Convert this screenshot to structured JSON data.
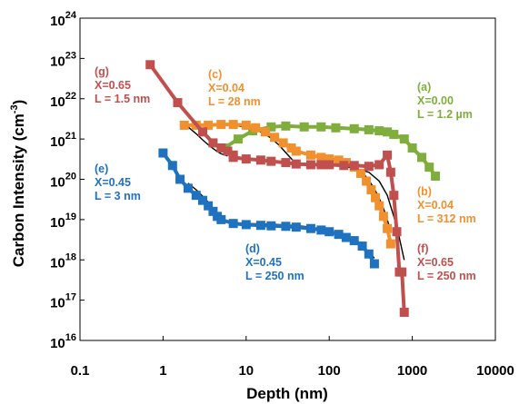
{
  "chart_data": {
    "type": "scatter",
    "title": "",
    "xlabel": "Depth (nm)",
    "ylabel_main": "Carbon Intensity (cm",
    "ylabel_sup": "-3",
    "ylabel_end": ")",
    "x_scale": "log",
    "y_scale": "log",
    "xlim": [
      0.1,
      10000
    ],
    "ylim": [
      1e+16,
      1e+24
    ],
    "grid": false,
    "legend": "none",
    "x_tick_labels": [
      "0.1",
      "1",
      "10",
      "100",
      "1000",
      "10000"
    ],
    "x_tick_values": [
      0.1,
      1,
      10,
      100,
      1000,
      10000
    ],
    "y_tick_base": "10",
    "y_tick_exponents": [
      "16",
      "17",
      "18",
      "19",
      "20",
      "21",
      "22",
      "23",
      "24"
    ],
    "series": [
      {
        "id": "a",
        "color": "#7fae3c",
        "label": [
          "(a)",
          "X=0.00",
          "L = 1.2 µm"
        ],
        "x": [
          5.5,
          8,
          12,
          20,
          30,
          50,
          80,
          120,
          200,
          300,
          400,
          500,
          600,
          800,
          1000,
          1300,
          1600,
          1900
        ],
        "y": [
          6e+20,
          1e+21,
          1.6e+21,
          2e+21,
          2.1e+21,
          2e+21,
          2e+21,
          1.9e+21,
          1.8e+21,
          1.7e+21,
          1.6e+21,
          1.5e+21,
          1.3e+21,
          1e+21,
          6e+20,
          3.5e+20,
          2e+20,
          1.2e+20
        ],
        "fit_x": [
          20,
          50,
          100,
          200,
          300,
          400,
          500,
          600,
          700,
          800,
          1000,
          1200,
          1500,
          1900
        ],
        "fit_y": [
          2.1e+21,
          2.05e+21,
          2e+21,
          1.85e+21,
          1.7e+21,
          1.55e+21,
          1.4e+21,
          1.25e+21,
          1.1e+21,
          9.5e+20,
          6.5e+20,
          4.5e+20,
          2.6e+20,
          1.3e+20
        ]
      },
      {
        "id": "b",
        "color": "#f0902e",
        "label": [
          "(b)",
          "X=0.04",
          "L = 312 nm"
        ],
        "x": [
          40,
          60,
          80,
          100,
          130,
          160,
          200,
          240,
          280,
          320,
          360,
          400,
          450,
          500,
          550
        ],
        "y": [
          5e+20,
          4e+20,
          3.5e+20,
          3.2e+20,
          3e+20,
          2.6e+20,
          2e+20,
          1.4e+20,
          9e+19,
          5.5e+19,
          3.5e+19,
          2.2e+19,
          1.2e+19,
          6e+18,
          2.5e+18
        ],
        "fit_x": [
          40,
          80,
          120,
          160,
          200,
          250,
          300,
          350,
          400,
          450,
          500,
          550
        ],
        "fit_y": [
          4.8e+20,
          3.6e+20,
          3.1e+20,
          2.7e+20,
          2.2e+20,
          1.5e+20,
          9.5e+19,
          5.8e+19,
          3.4e+19,
          1.9e+19,
          1e+19,
          5e+18
        ]
      },
      {
        "id": "c",
        "color": "#f0902e",
        "label": [
          "(c)",
          "X=0.04",
          "L = 28 nm"
        ],
        "x": [
          1.8,
          2.5,
          3.5,
          5,
          7,
          10,
          13,
          17,
          22,
          28,
          35
        ],
        "y": [
          2.2e+21,
          2.2e+21,
          2.2e+21,
          2.3e+21,
          2.3e+21,
          2.2e+21,
          1.9e+21,
          1.5e+21,
          1.1e+21,
          8e+20,
          6e+20
        ],
        "fit_x": [
          2,
          4,
          6,
          8,
          10,
          13,
          16,
          20,
          25,
          30,
          38
        ],
        "fit_y": [
          2.25e+21,
          2.25e+21,
          2.2e+21,
          2.1e+21,
          1.95e+21,
          1.7e+21,
          1.4e+21,
          1.05e+21,
          7e+20,
          4.6e+20,
          2.7e+20
        ]
      },
      {
        "id": "d",
        "color": "#1f72c0",
        "label": [
          "(d)",
          "X=0.45",
          "L = 250 nm"
        ],
        "x": [
          5,
          7,
          10,
          15,
          20,
          30,
          40,
          60,
          80,
          100,
          130,
          160,
          200,
          250,
          300,
          350
        ],
        "y": [
          1e+19,
          8e+18,
          7.5e+18,
          7.2e+18,
          7e+18,
          6.8e+18,
          6.5e+18,
          6e+18,
          5.5e+18,
          5e+18,
          4.3e+18,
          3.6e+18,
          3e+18,
          2.2e+18,
          1.4e+18,
          8e+17
        ],
        "fit_x": [
          10,
          20,
          40,
          60,
          80,
          100,
          130,
          160,
          200,
          250,
          300,
          350
        ],
        "fit_y": [
          8e+18,
          7.7e+18,
          7.1e+18,
          6.5e+18,
          5.9e+18,
          5.3e+18,
          4.5e+18,
          3.8e+18,
          3e+18,
          2.2e+18,
          1.6e+18,
          1.1e+18
        ]
      },
      {
        "id": "e",
        "color": "#1f72c0",
        "label": [
          "(e)",
          "X=0.45",
          "L = 3 nm"
        ],
        "x": [
          1,
          1.3,
          1.6,
          2,
          2.5,
          3,
          3.5,
          4,
          4.5
        ],
        "y": [
          4.5e+20,
          2.2e+20,
          1e+20,
          6e+19,
          4e+19,
          3e+19,
          2.2e+19,
          1.6e+19,
          1.2e+19
        ],
        "fit_x": [
          2,
          2.5,
          3,
          3.5,
          4,
          4.5,
          5
        ],
        "fit_y": [
          8e+19,
          5.5e+19,
          3.8e+19,
          2.7e+19,
          1.9e+19,
          1.35e+19,
          1e+19
        ]
      },
      {
        "id": "f",
        "color": "#c0504d",
        "label": [
          "(f)",
          "X=0.65",
          "L = 250 nm"
        ],
        "x": [
          7,
          10,
          15,
          20,
          30,
          40,
          60,
          80,
          100,
          150,
          200,
          300,
          400,
          500,
          550,
          600,
          650,
          700,
          750,
          800
        ],
        "y": [
          3.5e+20,
          3.2e+20,
          3e+20,
          2.8e+20,
          2.6e+20,
          2.4e+20,
          2.3e+20,
          2.3e+20,
          2.3e+20,
          2.2e+20,
          2.2e+20,
          2.1e+20,
          2.3e+20,
          4e+20,
          1.5e+20,
          4e+19,
          5e+18,
          5e+17,
          5e+17,
          5e+16
        ],
        "fit_x": [
          40,
          80,
          120,
          200,
          300,
          400,
          500,
          600,
          700,
          800
        ],
        "fit_y": [
          2.5e+20,
          2.35e+20,
          2.2e+20,
          1.9e+20,
          1.5e+20,
          9e+19,
          4e+19,
          1.2e+19,
          3.5e+18,
          1e+18
        ]
      },
      {
        "id": "g",
        "color": "#c0504d",
        "label": [
          "(g)",
          "X=0.65",
          "L = 1.5 nm"
        ],
        "x": [
          0.7,
          1.5,
          3,
          4,
          5,
          6,
          7
        ],
        "y": [
          7e+22,
          8e+21,
          1.5e+21,
          8e+20,
          6e+20,
          5e+20,
          4e+20
        ],
        "fit_x": [
          2,
          2.5,
          3,
          3.5,
          4,
          4.5,
          5,
          6
        ],
        "fit_y": [
          2e+21,
          1.35e+21,
          9.5e+20,
          7.2e+20,
          5.8e+20,
          4.9e+20,
          4.3e+20,
          3.8e+20
        ]
      }
    ]
  }
}
